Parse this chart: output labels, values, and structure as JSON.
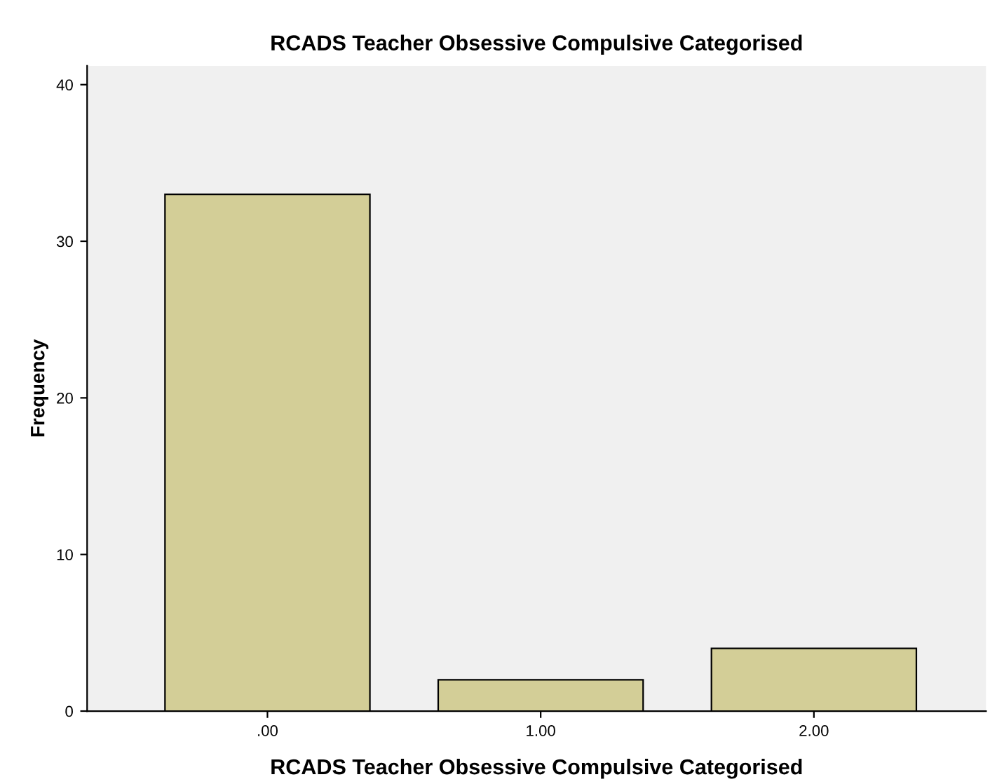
{
  "chart_data": {
    "type": "bar",
    "title": "RCADS Teacher Obsessive Compulsive Categorised",
    "xlabel": "RCADS Teacher Obsessive Compulsive Categorised",
    "ylabel": "Frequency",
    "categories": [
      ".00",
      "1.00",
      "2.00"
    ],
    "values": [
      33,
      2,
      4
    ],
    "color": "#d3ce97",
    "ylim": [
      0,
      41.2
    ],
    "yticks": [
      0,
      10,
      20,
      30,
      40
    ],
    "grid": false,
    "legend": false
  }
}
